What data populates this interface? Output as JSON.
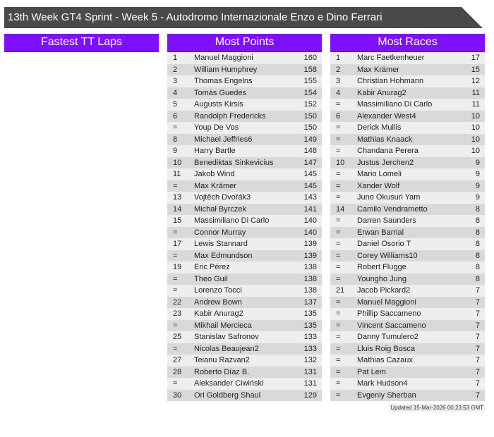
{
  "title": "13th Week GT4 Sprint - Week 5 - Autodromo Internazionale Enzo e Dino Ferrari",
  "colors": {
    "header": "#7f0fff",
    "title_bar": "#4a4a4a"
  },
  "fastest_tt": {
    "heading": "Fastest TT Laps",
    "rows": []
  },
  "most_points": {
    "heading": "Most Points",
    "rows": [
      [
        "1",
        "Manuel Maggioni",
        "160"
      ],
      [
        "2",
        "William Humphrey",
        "158"
      ],
      [
        "3",
        "Thomas Engelns",
        "155"
      ],
      [
        "4",
        "Tomás Guedes",
        "154"
      ],
      [
        "5",
        "Augusts Kirsis",
        "152"
      ],
      [
        "6",
        "Randolph Fredericks",
        "150"
      ],
      [
        "=",
        "Youp De Vos",
        "150"
      ],
      [
        "8",
        "Michael Jeffries6",
        "149"
      ],
      [
        "9",
        "Harry Bartle",
        "148"
      ],
      [
        "10",
        "Benediktas Sinkevicius",
        "147"
      ],
      [
        "11",
        "Jakob Wind",
        "145"
      ],
      [
        "=",
        "Max Krämer",
        "145"
      ],
      [
        "13",
        "Vojtěch Dvořák3",
        "143"
      ],
      [
        "14",
        "Michał Byrczek",
        "141"
      ],
      [
        "15",
        "Massimiliano Di Carlo",
        "140"
      ],
      [
        "=",
        "Connor Murray",
        "140"
      ],
      [
        "17",
        "Lewis Stannard",
        "139"
      ],
      [
        "=",
        "Max Edmundson",
        "139"
      ],
      [
        "19",
        "Eric Pérez",
        "138"
      ],
      [
        "=",
        "Theo Guil",
        "138"
      ],
      [
        "=",
        "Lorenzo Tocci",
        "138"
      ],
      [
        "22",
        "Andrew Bown",
        "137"
      ],
      [
        "23",
        "Kabir Anurag2",
        "135"
      ],
      [
        "=",
        "Mikhail Mercieca",
        "135"
      ],
      [
        "25",
        "Stanislav Safronov",
        "133"
      ],
      [
        "=",
        "Nicolas Beaujean2",
        "133"
      ],
      [
        "27",
        "Teianu Razvan2",
        "132"
      ],
      [
        "28",
        "Roberto Díaz B.",
        "131"
      ],
      [
        "=",
        "Aleksander Ciwiński",
        "131"
      ],
      [
        "30",
        "Ori Goldberg Shaul",
        "129"
      ]
    ]
  },
  "most_races": {
    "heading": "Most Races",
    "rows": [
      [
        "1",
        "Marc Faetkenheuer",
        "17"
      ],
      [
        "2",
        "Max Krämer",
        "15"
      ],
      [
        "3",
        "Christian Hohmann",
        "12"
      ],
      [
        "4",
        "Kabir Anurag2",
        "11"
      ],
      [
        "=",
        "Massimiliano Di Carlo",
        "11"
      ],
      [
        "6",
        "Alexander West4",
        "10"
      ],
      [
        "=",
        "Derick Mullis",
        "10"
      ],
      [
        "=",
        "Mathias Knaack",
        "10"
      ],
      [
        "=",
        "Chandana Perera",
        "10"
      ],
      [
        "10",
        "Justus Jerchen2",
        "9"
      ],
      [
        "=",
        "Mario Lomeli",
        "9"
      ],
      [
        "=",
        "Xander Wolf",
        "9"
      ],
      [
        "=",
        "Juno Okusuri Yam",
        "9"
      ],
      [
        "14",
        "Camilo Vendrametto",
        "8"
      ],
      [
        "=",
        "Darren Saunders",
        "8"
      ],
      [
        "=",
        "Erwan Barrial",
        "8"
      ],
      [
        "=",
        "Daniel Osorio T",
        "8"
      ],
      [
        "=",
        "Corey Williams10",
        "8"
      ],
      [
        "=",
        "Robert Flugge",
        "8"
      ],
      [
        "=",
        "Youngho Jung",
        "8"
      ],
      [
        "21",
        "Jacob Pickard2",
        "7"
      ],
      [
        "=",
        "Manuel Maggioni",
        "7"
      ],
      [
        "=",
        "Phillip Saccameno",
        "7"
      ],
      [
        "=",
        "Vincent Saccameno",
        "7"
      ],
      [
        "=",
        "Danny Tumulero2",
        "7"
      ],
      [
        "=",
        "Lluis Roig Bosca",
        "7"
      ],
      [
        "=",
        "Mathias Cazaux",
        "7"
      ],
      [
        "=",
        "Pat Lem",
        "7"
      ],
      [
        "=",
        "Mark Hudson4",
        "7"
      ],
      [
        "=",
        "Evgeniy Sherban",
        "7"
      ]
    ]
  },
  "updated": "Updated 15-Mar-2026 00:23:53 GMT"
}
